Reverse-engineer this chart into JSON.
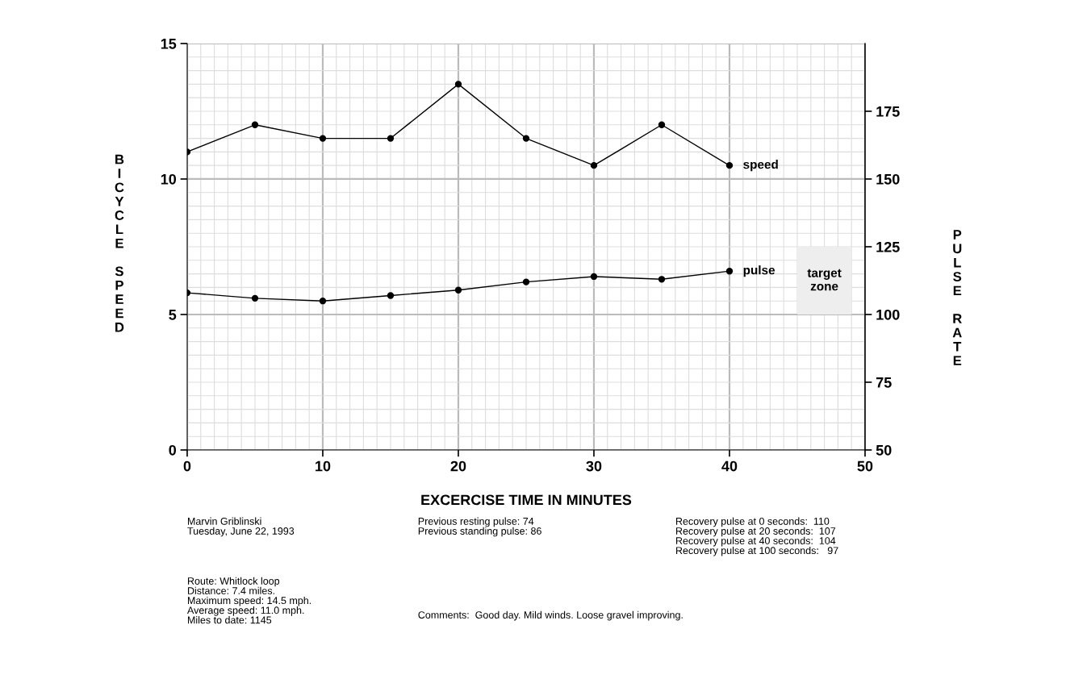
{
  "chart_data": {
    "type": "line",
    "xlabel": "EXCERCISE TIME IN MINUTES",
    "ylabel": "BICYCLE SPEED",
    "y2label": "PULSE RATE",
    "x": [
      0,
      5,
      10,
      15,
      20,
      25,
      30,
      35,
      40
    ],
    "series": [
      {
        "name": "speed",
        "color": "#000000",
        "values": [
          11,
          12,
          11.5,
          11.5,
          13.5,
          11.5,
          10.5,
          12,
          10.5
        ]
      },
      {
        "name": "pulse",
        "color": "#000000",
        "axis": "y2",
        "values": [
          108,
          106,
          105,
          107,
          109,
          112,
          114,
          113,
          116
        ]
      }
    ],
    "xlim": [
      0,
      50
    ],
    "xticks": [
      0,
      10,
      20,
      30,
      40,
      50
    ],
    "ylim": [
      0,
      15
    ],
    "yticks": [
      0,
      5,
      10,
      15
    ],
    "y2lim": [
      50,
      200
    ],
    "y2ticks": [
      50,
      75,
      100,
      125,
      150,
      175
    ],
    "bands": [
      {
        "axis": "y2",
        "from": 100,
        "to": 125,
        "label": "target zone",
        "color": "#eeeeee"
      }
    ],
    "grid": true,
    "marker": "circle",
    "line_style": "solid",
    "legend": false,
    "annotations": [
      "Marvin Griblinski\nTuesday, June 22, 1993",
      "Route: Whitlock loop\nDistance: 7.4 miles.\nMaximum speed: 14.5 mph.\nAverage speed: 11.0 mph.\nMiles to date: 1145",
      "Previous resting pulse: 74\nPrevious standing pulse: 86",
      "Comments:  Good day. Mild winds. Loose gravel improving.",
      "Recovery pulse at 0 seconds:  110\nRecovery pulse at 20 seconds:  107\nRecovery pulse at 40 seconds:  104\nRecovery pulse at 100 seconds:   97"
    ]
  }
}
